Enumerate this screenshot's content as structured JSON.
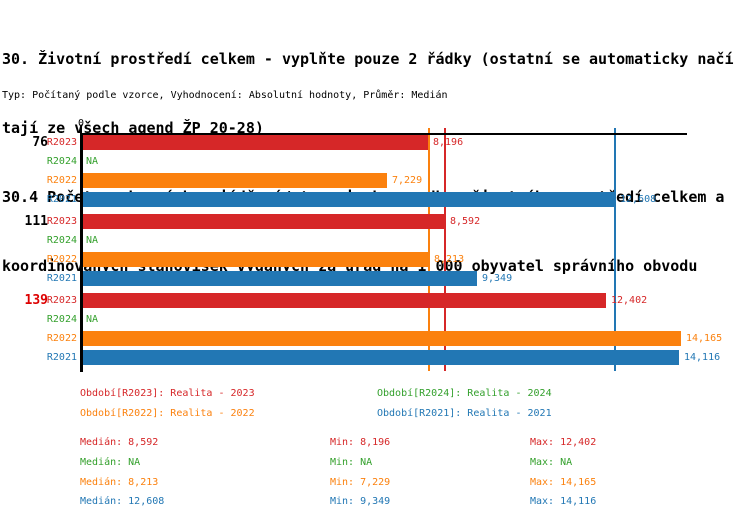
{
  "title": {
    "lines": [
      "30. Životní prostředí celkem - vyplňte pouze 2 řádky (ostatní se automaticky načí",
      "tají ze všech agend ŽP 20-28)",
      "30.4 Počet souhrnných vyjádření/stanovisek za odbor životního prostředí celkem a",
      "koordinovaných stanovisek vydaných za úřad na 1 000 obyvatel správního obvodu"
    ],
    "subtitle": "Typ: Počítaný podle vzorce, Vyhodnocení: Absolutní hodnoty, Průměr: Medián"
  },
  "chart_data": {
    "type": "bar",
    "orientation": "horizontal",
    "axis_zero_label": "0",
    "na_label": "NA",
    "series_order": [
      "R2023",
      "R2024",
      "R2022",
      "R2021"
    ],
    "series_colors": {
      "R2023": "#d62728",
      "R2024": "#33a02c",
      "R2022": "#fb810e",
      "R2021": "#2277b4"
    },
    "groups": [
      {
        "label": "76",
        "label_color": "#000000",
        "bars": [
          {
            "series": "R2023",
            "value": 8.196,
            "value_label": "8,196"
          },
          {
            "series": "R2024",
            "value": null,
            "value_label": "NA"
          },
          {
            "series": "R2022",
            "value": 7.229,
            "value_label": "7,229"
          },
          {
            "series": "R2021",
            "value": 12.608,
            "value_label": "12,608"
          }
        ]
      },
      {
        "label": "111",
        "label_color": "#000000",
        "bars": [
          {
            "series": "R2023",
            "value": 8.592,
            "value_label": "8,592"
          },
          {
            "series": "R2024",
            "value": null,
            "value_label": "NA"
          },
          {
            "series": "R2022",
            "value": 8.213,
            "value_label": "8,213"
          },
          {
            "series": "R2021",
            "value": 9.349,
            "value_label": "9,349"
          }
        ]
      },
      {
        "label": "139",
        "label_color": "#dd0000",
        "bars": [
          {
            "series": "R2023",
            "value": 12.402,
            "value_label": "12,402"
          },
          {
            "series": "R2024",
            "value": null,
            "value_label": "NA"
          },
          {
            "series": "R2022",
            "value": 14.165,
            "value_label": "14,165"
          },
          {
            "series": "R2021",
            "value": 14.116,
            "value_label": "14,116"
          }
        ]
      }
    ],
    "median_lines": [
      {
        "series": "R2022",
        "value": 8.213,
        "color": "#fb810e"
      },
      {
        "series": "R2023",
        "value": 8.592,
        "color": "#d62728"
      },
      {
        "series": "R2021",
        "value": 12.608,
        "color": "#2277b4"
      }
    ],
    "legend": [
      {
        "label": "Období[R2023]: Realita - 2023",
        "color": "#d62728"
      },
      {
        "label": "Období[R2024]: Realita - 2024",
        "color": "#33a02c"
      },
      {
        "label": "Období[R2022]: Realita - 2022",
        "color": "#fb810e"
      },
      {
        "label": "Období[R2021]: Realita - 2021",
        "color": "#2277b4"
      }
    ],
    "stats": [
      {
        "color": "#d62728",
        "median": "Medián: 8,592",
        "min": "Min: 8,196",
        "max": "Max: 12,402"
      },
      {
        "color": "#33a02c",
        "median": "Medián: NA",
        "min": "Min: NA",
        "max": "Max: NA"
      },
      {
        "color": "#fb810e",
        "median": "Medián: 8,213",
        "min": "Min: 7,229",
        "max": "Max: 14,165"
      },
      {
        "color": "#2277b4",
        "median": "Medián: 12,608",
        "min": "Min: 9,349",
        "max": "Max: 14,116"
      }
    ]
  }
}
